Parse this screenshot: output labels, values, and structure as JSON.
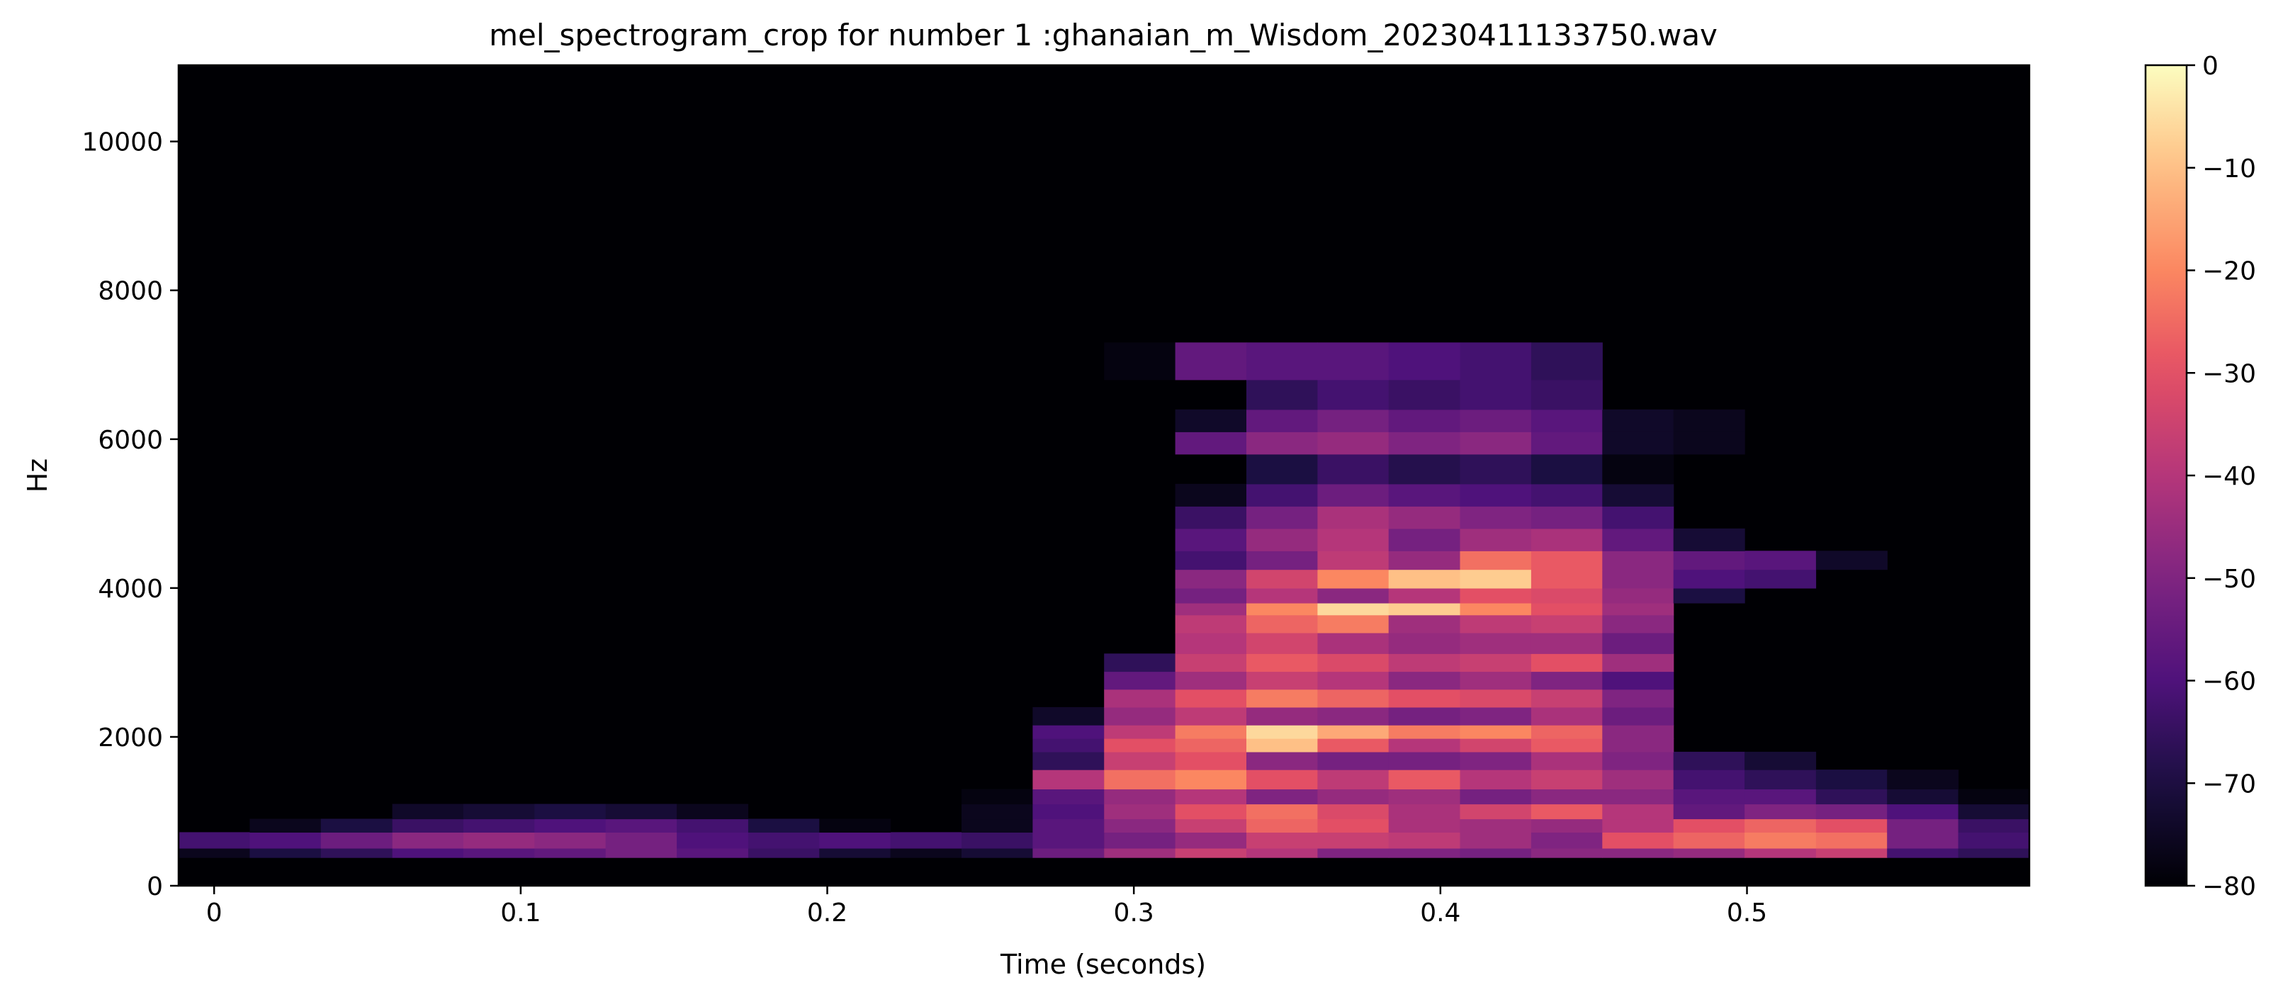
{
  "chart_data": {
    "type": "heatmap",
    "title": "mel_spectrogram_crop for number 1 :ghanaian_m_Wisdom_20230411133750.wav",
    "xlabel": "Time (seconds)",
    "ylabel": "Hz",
    "xlim": [
      -0.0116,
      0.5921
    ],
    "ylim": [
      0,
      11025
    ],
    "x_ticks": [
      0,
      0.1,
      0.2,
      0.3,
      0.4,
      0.5
    ],
    "x_tick_labels": [
      "0",
      "0.1",
      "0.2",
      "0.3",
      "0.4",
      "0.5"
    ],
    "y_ticks": [
      0,
      2000,
      4000,
      6000,
      8000,
      10000
    ],
    "y_tick_labels": [
      "0",
      "2000",
      "4000",
      "6000",
      "8000",
      "10000"
    ],
    "colorbar": {
      "min": -80,
      "max": 0,
      "ticks": [
        0,
        -10,
        -20,
        -30,
        -40,
        -50,
        -60,
        -70,
        -80
      ],
      "tick_labels": [
        "0",
        "−10",
        "−20",
        "−30",
        "−40",
        "−50",
        "−60",
        "−70",
        "−80"
      ],
      "colormap": "magma"
    },
    "frame_times": [
      0,
      0.0232,
      0.0464,
      0.0697,
      0.0929,
      0.1161,
      0.1393,
      0.1625,
      0.1858,
      0.209,
      0.2322,
      0.2554,
      0.2786,
      0.3019,
      0.3251,
      0.3483,
      0.3715,
      0.3947,
      0.418,
      0.4412,
      0.4644,
      0.4876,
      0.5108,
      0.5341,
      0.5573,
      0.5805
    ],
    "frame_width": 0.0232,
    "dB_background": -80,
    "bands": [
      {
        "hz": [
          500,
          720
        ],
        "dB": [
          -62,
          -60,
          -54,
          -48,
          -46,
          -48,
          -52,
          -60,
          -62,
          -60,
          -62,
          -64,
          -58,
          -52,
          -46,
          -36,
          -36,
          -38,
          -44,
          -50,
          -30,
          -26,
          -22,
          -24,
          -52,
          -62
        ]
      },
      {
        "hz": [
          380,
          500
        ],
        "dB": [
          -76,
          -70,
          -66,
          -60,
          -58,
          -56,
          -52,
          -58,
          -64,
          -72,
          -76,
          -72,
          -54,
          -44,
          -36,
          -40,
          -50,
          -50,
          -52,
          -48,
          -48,
          -46,
          -40,
          -36,
          -62,
          -66
        ]
      },
      {
        "hz": [
          720,
          900
        ],
        "dB": [
          -80,
          -76,
          -70,
          -64,
          -62,
          -60,
          -58,
          -62,
          -70,
          -78,
          -80,
          -76,
          -58,
          -48,
          -36,
          -26,
          -30,
          -42,
          -44,
          -46,
          -40,
          -30,
          -26,
          -30,
          -52,
          -64
        ]
      },
      {
        "hz": [
          900,
          1100
        ],
        "dB": [
          -80,
          -80,
          -80,
          -74,
          -72,
          -70,
          -72,
          -76,
          -80,
          -80,
          -80,
          -76,
          -60,
          -44,
          -30,
          -24,
          -32,
          -42,
          -34,
          -28,
          -40,
          -56,
          -50,
          -52,
          -60,
          -72
        ]
      },
      {
        "hz": [
          1100,
          1300
        ],
        "dB": [
          -80,
          -80,
          -80,
          -80,
          -80,
          -80,
          -80,
          -80,
          -80,
          -80,
          -80,
          -78,
          -58,
          -46,
          -40,
          -50,
          -46,
          -44,
          -52,
          -48,
          -48,
          -58,
          -58,
          -66,
          -72,
          -78
        ]
      },
      {
        "hz": [
          1300,
          1560
        ],
        "dB": [
          -80,
          -80,
          -80,
          -80,
          -80,
          -80,
          -80,
          -80,
          -80,
          -80,
          -80,
          -80,
          -40,
          -24,
          -20,
          -30,
          -38,
          -28,
          -40,
          -36,
          -44,
          -62,
          -66,
          -70,
          -76,
          -80
        ]
      },
      {
        "hz": [
          1560,
          1800
        ],
        "dB": [
          -80,
          -80,
          -80,
          -80,
          -80,
          -80,
          -80,
          -80,
          -80,
          -80,
          -80,
          -80,
          -66,
          -36,
          -30,
          -48,
          -52,
          -52,
          -50,
          -42,
          -50,
          -66,
          -72,
          -80,
          -80,
          -80
        ]
      },
      {
        "hz": [
          1800,
          1980
        ],
        "dB": [
          -80,
          -80,
          -80,
          -80,
          -80,
          -80,
          -80,
          -80,
          -80,
          -80,
          -80,
          -80,
          -62,
          -30,
          -26,
          -10,
          -28,
          -40,
          -34,
          -28,
          -48,
          -80,
          -80,
          -80,
          -80,
          -80
        ]
      },
      {
        "hz": [
          1980,
          2160
        ],
        "dB": [
          -80,
          -80,
          -80,
          -80,
          -80,
          -80,
          -80,
          -80,
          -80,
          -80,
          -80,
          -80,
          -60,
          -38,
          -22,
          -6,
          -14,
          -22,
          -20,
          -26,
          -48,
          -80,
          -80,
          -80,
          -80,
          -80
        ]
      },
      {
        "hz": [
          2160,
          2400
        ],
        "dB": [
          -80,
          -80,
          -80,
          -80,
          -80,
          -80,
          -80,
          -80,
          -80,
          -80,
          -80,
          -80,
          -74,
          -46,
          -38,
          -46,
          -48,
          -52,
          -50,
          -42,
          -54,
          -80,
          -80,
          -80,
          -80,
          -80
        ]
      },
      {
        "hz": [
          2400,
          2640
        ],
        "dB": [
          -80,
          -80,
          -80,
          -80,
          -80,
          -80,
          -80,
          -80,
          -80,
          -80,
          -80,
          -80,
          -80,
          -42,
          -30,
          -22,
          -26,
          -30,
          -32,
          -36,
          -50,
          -80,
          -80,
          -80,
          -80,
          -80
        ]
      },
      {
        "hz": [
          2640,
          2880
        ],
        "dB": [
          -80,
          -80,
          -80,
          -80,
          -80,
          -80,
          -80,
          -80,
          -80,
          -80,
          -80,
          -80,
          -80,
          -56,
          -44,
          -36,
          -40,
          -48,
          -44,
          -50,
          -60,
          -80,
          -80,
          -80,
          -80,
          -80
        ]
      },
      {
        "hz": [
          2880,
          3120
        ],
        "dB": [
          -80,
          -80,
          -80,
          -80,
          -80,
          -80,
          -80,
          -80,
          -80,
          -80,
          -80,
          -80,
          -80,
          -66,
          -36,
          -28,
          -32,
          -38,
          -36,
          -30,
          -44,
          -80,
          -80,
          -80,
          -80,
          -80
        ]
      },
      {
        "hz": [
          3120,
          3400
        ],
        "dB": [
          -80,
          -80,
          -80,
          -80,
          -80,
          -80,
          -80,
          -80,
          -80,
          -80,
          -80,
          -80,
          -80,
          -80,
          -40,
          -34,
          -42,
          -46,
          -44,
          -44,
          -54,
          -80,
          -80,
          -80,
          -80,
          -80
        ]
      },
      {
        "hz": [
          3400,
          3640
        ],
        "dB": [
          -80,
          -80,
          -80,
          -80,
          -80,
          -80,
          -80,
          -80,
          -80,
          -80,
          -80,
          -80,
          -80,
          -80,
          -38,
          -26,
          -22,
          -44,
          -38,
          -36,
          -48,
          -80,
          -80,
          -80,
          -80,
          -80
        ]
      },
      {
        "hz": [
          3640,
          3800
        ],
        "dB": [
          -80,
          -80,
          -80,
          -80,
          -80,
          -80,
          -80,
          -80,
          -80,
          -80,
          -80,
          -80,
          -80,
          -80,
          -44,
          -20,
          -6,
          -8,
          -20,
          -30,
          -44,
          -80,
          -80,
          -80,
          -80,
          -80
        ]
      },
      {
        "hz": [
          3800,
          4000
        ],
        "dB": [
          -80,
          -80,
          -80,
          -80,
          -80,
          -80,
          -80,
          -80,
          -80,
          -80,
          -80,
          -80,
          -80,
          -80,
          -52,
          -40,
          -48,
          -40,
          -30,
          -32,
          -46,
          -70,
          -80,
          -80,
          -80,
          -80
        ]
      },
      {
        "hz": [
          4000,
          4250
        ],
        "dB": [
          -80,
          -80,
          -80,
          -80,
          -80,
          -80,
          -80,
          -80,
          -80,
          -80,
          -80,
          -80,
          -80,
          -80,
          -48,
          -34,
          -20,
          -10,
          -8,
          -28,
          -48,
          -60,
          -62,
          -80,
          -80,
          -80
        ]
      },
      {
        "hz": [
          4250,
          4500
        ],
        "dB": [
          -80,
          -80,
          -80,
          -80,
          -80,
          -80,
          -80,
          -80,
          -80,
          -80,
          -80,
          -80,
          -80,
          -80,
          -62,
          -52,
          -38,
          -46,
          -24,
          -28,
          -48,
          -56,
          -58,
          -74,
          -80,
          -80
        ]
      },
      {
        "hz": [
          4500,
          4800
        ],
        "dB": [
          -80,
          -80,
          -80,
          -80,
          -80,
          -80,
          -80,
          -80,
          -80,
          -80,
          -80,
          -80,
          -80,
          -80,
          -58,
          -46,
          -40,
          -52,
          -44,
          -42,
          -56,
          -72,
          -80,
          -80,
          -80,
          -80
        ]
      },
      {
        "hz": [
          4800,
          5100
        ],
        "dB": [
          -80,
          -80,
          -80,
          -80,
          -80,
          -80,
          -80,
          -80,
          -80,
          -80,
          -80,
          -80,
          -80,
          -80,
          -64,
          -52,
          -42,
          -46,
          -50,
          -52,
          -62,
          -80,
          -80,
          -80,
          -80,
          -80
        ]
      },
      {
        "hz": [
          5100,
          5400
        ],
        "dB": [
          -80,
          -80,
          -80,
          -80,
          -80,
          -80,
          -80,
          -80,
          -80,
          -80,
          -80,
          -80,
          -80,
          -80,
          -76,
          -62,
          -54,
          -58,
          -60,
          -62,
          -72,
          -80,
          -80,
          -80,
          -80,
          -80
        ]
      },
      {
        "hz": [
          5400,
          5800
        ],
        "dB": [
          -80,
          -80,
          -80,
          -80,
          -80,
          -80,
          -80,
          -80,
          -80,
          -80,
          -80,
          -80,
          -80,
          -80,
          -80,
          -70,
          -64,
          -68,
          -66,
          -70,
          -78,
          -80,
          -80,
          -80,
          -80,
          -80
        ]
      },
      {
        "hz": [
          5800,
          6100
        ],
        "dB": [
          -80,
          -80,
          -80,
          -80,
          -80,
          -80,
          -80,
          -80,
          -80,
          -80,
          -80,
          -80,
          -80,
          -80,
          -56,
          -48,
          -46,
          -50,
          -48,
          -56,
          -74,
          -76,
          -80,
          -80,
          -80,
          -80
        ]
      },
      {
        "hz": [
          6100,
          6400
        ],
        "dB": [
          -80,
          -80,
          -80,
          -80,
          -80,
          -80,
          -80,
          -80,
          -80,
          -80,
          -80,
          -80,
          -80,
          -80,
          -74,
          -56,
          -52,
          -56,
          -54,
          -58,
          -74,
          -76,
          -80,
          -80,
          -80,
          -80
        ]
      },
      {
        "hz": [
          6400,
          6800
        ],
        "dB": [
          -80,
          -80,
          -80,
          -80,
          -80,
          -80,
          -80,
          -80,
          -80,
          -80,
          -80,
          -80,
          -80,
          -80,
          -80,
          -66,
          -62,
          -64,
          -62,
          -64,
          -80,
          -80,
          -80,
          -80,
          -80,
          -80
        ]
      },
      {
        "hz": [
          6800,
          7300
        ],
        "dB": [
          -80,
          -80,
          -80,
          -80,
          -80,
          -80,
          -80,
          -80,
          -80,
          -80,
          -80,
          -80,
          -80,
          -78,
          -56,
          -58,
          -58,
          -60,
          -62,
          -66,
          -80,
          -80,
          -80,
          -80,
          -80,
          -80
        ]
      }
    ]
  }
}
